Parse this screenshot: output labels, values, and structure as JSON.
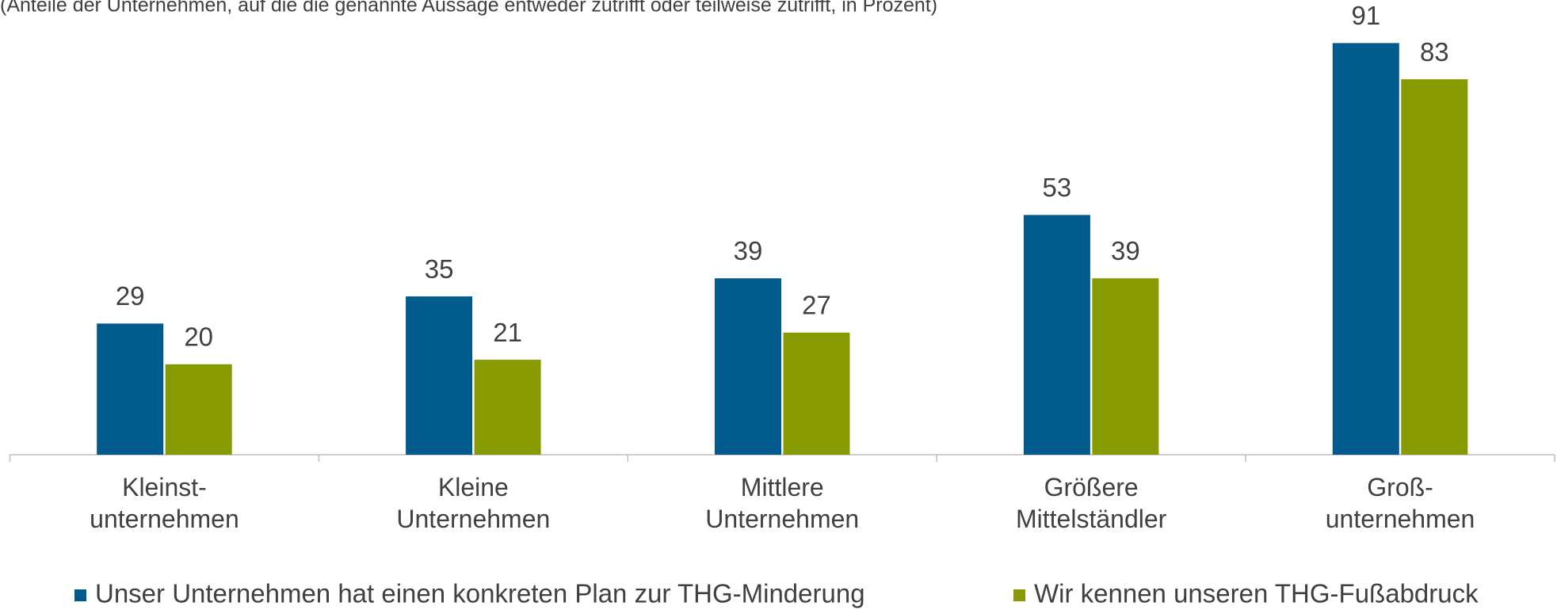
{
  "chart_data": {
    "type": "bar",
    "subtitle": "(Anteile der Unternehmen, auf die die genannte Aussage entweder zutrifft oder teilweise zutrifft, in Prozent)",
    "categories": [
      "Kleinst-\nunternehmen",
      "Kleine\nUnternehmen",
      "Mittlere\nUnternehmen",
      "Größere\nMittelständler",
      "Groß-\nunternehmen"
    ],
    "series": [
      {
        "name": "Unser Unternehmen hat einen konkreten Plan zur THG-Minderung",
        "color": "#005a8c",
        "values": [
          29,
          35,
          39,
          53,
          91
        ]
      },
      {
        "name": "Wir kennen unseren THG-Fußabdruck",
        "color": "#879a00",
        "values": [
          20,
          21,
          27,
          39,
          83
        ]
      }
    ],
    "ylim": [
      0,
      100
    ]
  }
}
